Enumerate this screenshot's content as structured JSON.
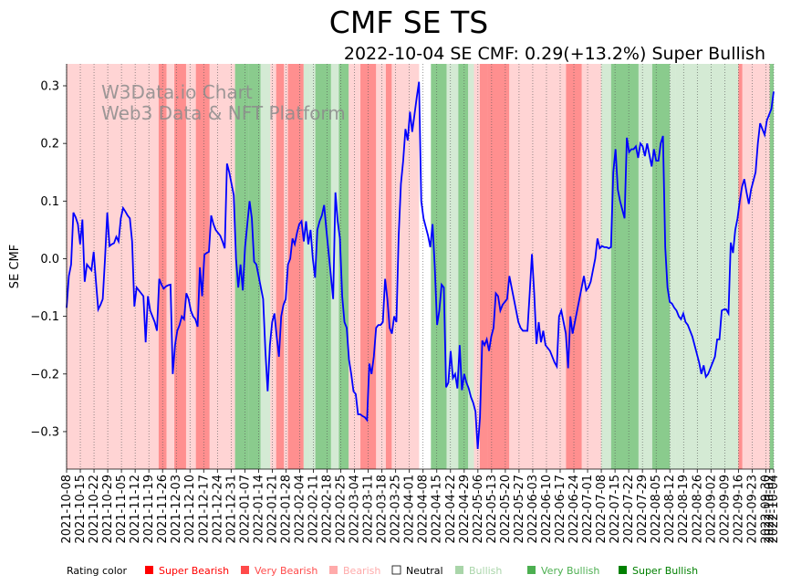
{
  "colors": {
    "super_bearish": "#ff0000",
    "very_bearish": "#ff4a4a",
    "bearish": "#ffaaaa",
    "neutral": "#ffffff",
    "bullish": "#a9d5a9",
    "very_bullish": "#4caf50",
    "super_bullish": "#008000",
    "line": "#0000ff"
  },
  "watermark": {
    "line1": "W3Data.io Chart",
    "line2": "Web3 Data & NFT Platform"
  },
  "legend": {
    "title": "Rating color",
    "items": [
      {
        "key": "super_bearish",
        "label": "Super Bearish"
      },
      {
        "key": "very_bearish",
        "label": "Very Bearish"
      },
      {
        "key": "bearish",
        "label": "Bearish"
      },
      {
        "key": "neutral",
        "label": "Neutral"
      },
      {
        "key": "bullish",
        "label": "Bullish"
      },
      {
        "key": "very_bullish",
        "label": "Very Bullish"
      },
      {
        "key": "super_bullish",
        "label": "Super Bullish"
      }
    ]
  },
  "chart_data": {
    "type": "line",
    "title": "CMF SE TS",
    "subtitle": "2022-10-04 SE CMF: 0.29(+13.2%) Super Bullish",
    "xlabel": "",
    "ylabel": "SE CMF",
    "ylim": [
      -0.365,
      0.338
    ],
    "yticks": [
      -0.3,
      -0.2,
      -0.1,
      0.0,
      0.1,
      0.2,
      0.3
    ],
    "ytick_labels": [
      "−0.3",
      "−0.2",
      "−0.1",
      "0.0",
      "0.1",
      "0.2",
      "0.3"
    ],
    "x_start": "2021-10-08",
    "x_end": "2022-10-04",
    "xtick_labels": [
      "2021-10-08",
      "2021-10-15",
      "2021-10-22",
      "2021-10-29",
      "2021-11-05",
      "2021-11-12",
      "2021-11-19",
      "2021-11-26",
      "2021-12-03",
      "2021-12-10",
      "2021-12-17",
      "2021-12-24",
      "2021-12-31",
      "2022-01-07",
      "2022-01-14",
      "2022-01-21",
      "2022-01-28",
      "2022-02-04",
      "2022-02-11",
      "2022-02-18",
      "2022-02-25",
      "2022-03-04",
      "2022-03-11",
      "2022-03-18",
      "2022-03-25",
      "2022-04-01",
      "2022-04-08",
      "2022-04-15",
      "2022-04-22",
      "2022-04-29",
      "2022-05-06",
      "2022-05-13",
      "2022-05-20",
      "2022-05-27",
      "2022-06-03",
      "2022-06-10",
      "2022-06-17",
      "2022-06-24",
      "2022-07-01",
      "2022-07-08",
      "2022-07-15",
      "2022-07-22",
      "2022-07-29",
      "2022-08-05",
      "2022-08-12",
      "2022-08-19",
      "2022-08-26",
      "2022-09-02",
      "2022-09-09",
      "2022-09-16",
      "2022-09-23",
      "2022-09-30",
      "2022-10-02",
      "2022-10-04"
    ],
    "series": [
      {
        "name": "SE CMF",
        "values": [
          -0.085,
          -0.03,
          -0.01,
          0.08,
          0.072,
          0.06,
          0.025,
          0.068,
          -0.04,
          -0.01,
          -0.015,
          -0.02,
          0.012,
          -0.04,
          -0.088,
          -0.08,
          -0.07,
          0.0,
          0.08,
          0.022,
          0.025,
          0.027,
          0.038,
          0.03,
          0.07,
          0.088,
          0.082,
          0.075,
          0.07,
          0.03,
          -0.083,
          -0.05,
          -0.055,
          -0.06,
          -0.065,
          -0.145,
          -0.065,
          -0.09,
          -0.1,
          -0.11,
          -0.125,
          -0.035,
          -0.045,
          -0.052,
          -0.048,
          -0.046,
          -0.045,
          -0.2,
          -0.15,
          -0.125,
          -0.115,
          -0.1,
          -0.105,
          -0.06,
          -0.07,
          -0.09,
          -0.1,
          -0.105,
          -0.118,
          -0.015,
          -0.065,
          0.007,
          0.01,
          0.012,
          0.075,
          0.06,
          0.05,
          0.045,
          0.04,
          0.03,
          0.018,
          0.165,
          0.15,
          0.13,
          0.11,
          0.0,
          -0.05,
          -0.01,
          -0.055,
          0.02,
          0.06,
          0.1,
          0.07,
          -0.005,
          -0.01,
          -0.03,
          -0.05,
          -0.07,
          -0.16,
          -0.23,
          -0.15,
          -0.11,
          -0.095,
          -0.135,
          -0.17,
          -0.1,
          -0.08,
          -0.07,
          -0.01,
          0.0,
          0.035,
          0.025,
          0.045,
          0.06,
          0.065,
          0.03,
          0.065,
          0.025,
          0.05,
          0.0,
          -0.033,
          0.05,
          0.065,
          0.075,
          0.093,
          0.05,
          0.01,
          -0.03,
          -0.07,
          0.115,
          0.065,
          0.035,
          -0.065,
          -0.11,
          -0.12,
          -0.175,
          -0.2,
          -0.23,
          -0.235,
          -0.27,
          -0.27,
          -0.273,
          -0.275,
          -0.28,
          -0.182,
          -0.2,
          -0.17,
          -0.12,
          -0.115,
          -0.115,
          -0.11,
          -0.035,
          -0.07,
          -0.12,
          -0.13,
          -0.1,
          -0.11,
          0.04,
          0.13,
          0.17,
          0.225,
          0.205,
          0.255,
          0.22,
          0.25,
          0.28,
          0.307,
          0.1,
          0.07,
          0.055,
          0.04,
          0.02,
          0.06,
          -0.015,
          -0.115,
          -0.09,
          -0.045,
          -0.05,
          -0.223,
          -0.215,
          -0.16,
          -0.207,
          -0.2,
          -0.225,
          -0.15,
          -0.228,
          -0.2,
          -0.215,
          -0.225,
          -0.24,
          -0.25,
          -0.265,
          -0.33,
          -0.275,
          -0.142,
          -0.15,
          -0.14,
          -0.16,
          -0.135,
          -0.12,
          -0.06,
          -0.065,
          -0.09,
          -0.08,
          -0.075,
          -0.07,
          -0.03,
          -0.05,
          -0.07,
          -0.09,
          -0.11,
          -0.12,
          -0.125,
          -0.125,
          -0.125,
          -0.06,
          0.008,
          -0.06,
          -0.148,
          -0.11,
          -0.145,
          -0.125,
          -0.15,
          -0.155,
          -0.16,
          -0.17,
          -0.18,
          -0.187,
          -0.1,
          -0.09,
          -0.11,
          -0.13,
          -0.19,
          -0.1,
          -0.13,
          -0.11,
          -0.09,
          -0.07,
          -0.05,
          -0.03,
          -0.055,
          -0.05,
          -0.04,
          -0.02,
          0.0,
          0.035,
          0.018,
          0.022,
          0.02,
          0.02,
          0.018,
          0.02,
          0.15,
          0.19,
          0.12,
          0.1,
          0.085,
          0.07,
          0.21,
          0.185,
          0.19,
          0.19,
          0.195,
          0.175,
          0.2,
          0.195,
          0.178,
          0.2,
          0.18,
          0.16,
          0.19,
          0.17,
          0.17,
          0.2,
          0.213,
          0.02,
          -0.05,
          -0.075,
          -0.078,
          -0.085,
          -0.09,
          -0.1,
          -0.105,
          -0.095,
          -0.11,
          -0.115,
          -0.125,
          -0.135,
          -0.15,
          -0.165,
          -0.18,
          -0.2,
          -0.185,
          -0.205,
          -0.2,
          -0.19,
          -0.18,
          -0.17,
          -0.14,
          -0.14,
          -0.09,
          -0.088,
          -0.088,
          -0.095,
          0.028,
          0.01,
          0.05,
          0.07,
          0.1,
          0.125,
          0.138,
          0.115,
          0.095,
          0.12,
          0.135,
          0.15,
          0.2,
          0.235,
          0.225,
          0.215,
          0.24,
          0.25,
          0.26,
          0.29
        ]
      }
    ],
    "rating_segments": [
      {
        "start": "2021-10-08",
        "end": "2021-11-24",
        "rating": "bearish"
      },
      {
        "start": "2021-11-24",
        "end": "2021-11-28",
        "rating": "very_bearish"
      },
      {
        "start": "2021-11-28",
        "end": "2021-12-02",
        "rating": "bearish"
      },
      {
        "start": "2021-12-02",
        "end": "2021-12-08",
        "rating": "very_bearish"
      },
      {
        "start": "2021-12-08",
        "end": "2021-12-13",
        "rating": "bearish"
      },
      {
        "start": "2021-12-13",
        "end": "2021-12-20",
        "rating": "very_bearish"
      },
      {
        "start": "2021-12-20",
        "end": "2022-01-02",
        "rating": "bearish"
      },
      {
        "start": "2022-01-02",
        "end": "2022-01-09",
        "rating": "very_bullish"
      },
      {
        "start": "2022-01-09",
        "end": "2022-01-15",
        "rating": "very_bullish"
      },
      {
        "start": "2022-01-15",
        "end": "2022-01-20",
        "rating": "bullish"
      },
      {
        "start": "2022-01-20",
        "end": "2022-01-23",
        "rating": "bearish"
      },
      {
        "start": "2022-01-23",
        "end": "2022-01-27",
        "rating": "very_bearish"
      },
      {
        "start": "2022-01-27",
        "end": "2022-01-29",
        "rating": "bearish"
      },
      {
        "start": "2022-01-29",
        "end": "2022-02-06",
        "rating": "very_bearish"
      },
      {
        "start": "2022-02-06",
        "end": "2022-02-09",
        "rating": "bullish"
      },
      {
        "start": "2022-02-09",
        "end": "2022-02-12",
        "rating": "bullish"
      },
      {
        "start": "2022-02-12",
        "end": "2022-02-20",
        "rating": "very_bullish"
      },
      {
        "start": "2022-02-20",
        "end": "2022-02-24",
        "rating": "bullish"
      },
      {
        "start": "2022-02-24",
        "end": "2022-03-01",
        "rating": "very_bullish"
      },
      {
        "start": "2022-03-01",
        "end": "2022-03-07",
        "rating": "bearish"
      },
      {
        "start": "2022-03-07",
        "end": "2022-03-15",
        "rating": "very_bearish"
      },
      {
        "start": "2022-03-15",
        "end": "2022-03-20",
        "rating": "bearish"
      },
      {
        "start": "2022-03-20",
        "end": "2022-03-23",
        "rating": "very_bearish"
      },
      {
        "start": "2022-03-23",
        "end": "2022-04-06",
        "rating": "bearish"
      },
      {
        "start": "2022-04-06",
        "end": "2022-04-12",
        "rating": "neutral"
      },
      {
        "start": "2022-04-12",
        "end": "2022-04-20",
        "rating": "very_bullish"
      },
      {
        "start": "2022-04-20",
        "end": "2022-04-26",
        "rating": "bullish"
      },
      {
        "start": "2022-04-26",
        "end": "2022-05-01",
        "rating": "very_bullish"
      },
      {
        "start": "2022-05-01",
        "end": "2022-05-04",
        "rating": "bullish"
      },
      {
        "start": "2022-05-04",
        "end": "2022-05-07",
        "rating": "bearish"
      },
      {
        "start": "2022-05-07",
        "end": "2022-05-11",
        "rating": "very_bearish"
      },
      {
        "start": "2022-05-11",
        "end": "2022-05-22",
        "rating": "very_bearish"
      },
      {
        "start": "2022-05-22",
        "end": "2022-06-20",
        "rating": "bearish"
      },
      {
        "start": "2022-06-20",
        "end": "2022-06-24",
        "rating": "very_bearish"
      },
      {
        "start": "2022-06-24",
        "end": "2022-06-28",
        "rating": "very_bearish"
      },
      {
        "start": "2022-06-28",
        "end": "2022-07-08",
        "rating": "bearish"
      },
      {
        "start": "2022-07-08",
        "end": "2022-07-13",
        "rating": "bullish"
      },
      {
        "start": "2022-07-13",
        "end": "2022-07-27",
        "rating": "very_bullish"
      },
      {
        "start": "2022-07-27",
        "end": "2022-08-03",
        "rating": "bullish"
      },
      {
        "start": "2022-08-03",
        "end": "2022-08-12",
        "rating": "very_bullish"
      },
      {
        "start": "2022-08-12",
        "end": "2022-08-15",
        "rating": "bullish"
      },
      {
        "start": "2022-08-15",
        "end": "2022-09-16",
        "rating": "bullish"
      },
      {
        "start": "2022-09-16",
        "end": "2022-09-18",
        "rating": "very_bearish"
      },
      {
        "start": "2022-09-18",
        "end": "2022-10-02",
        "rating": "bearish"
      },
      {
        "start": "2022-10-02",
        "end": "2022-10-04",
        "rating": "very_bullish"
      }
    ]
  }
}
